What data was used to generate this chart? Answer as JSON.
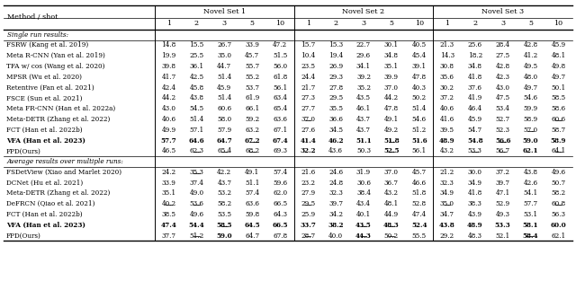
{
  "section1_label": "Single run results:",
  "section2_label": "Average results over multiple runs:",
  "single_run": [
    [
      "FSRW (Kang et al. 2019)",
      "14.8",
      "15.5",
      "26.7",
      "33.9",
      "47.2",
      "15.7",
      "15.3",
      "22.7",
      "30.1",
      "40.5",
      "21.3",
      "25.6",
      "28.4",
      "42.8",
      "45.9"
    ],
    [
      "Meta R-CNN (Yan et al. 2019)",
      "19.9",
      "25.5",
      "35.0",
      "45.7",
      "51.5",
      "10.4",
      "19.4",
      "29.6",
      "34.8",
      "45.4",
      "14.3",
      "18.2",
      "27.5",
      "41.2",
      "48.1"
    ],
    [
      "TFA w/ cos (Wang et al. 2020)",
      "39.8",
      "36.1",
      "44.7",
      "55.7",
      "56.0",
      "23.5",
      "26.9",
      "34.1",
      "35.1",
      "39.1",
      "30.8",
      "34.8",
      "42.8",
      "49.5",
      "49.8"
    ],
    [
      "MPSR (Wu et al. 2020)",
      "41.7",
      "42.5",
      "51.4",
      "55.2",
      "61.8",
      "24.4",
      "29.3",
      "39.2",
      "39.9",
      "47.8",
      "35.6",
      "41.8",
      "42.3",
      "48.0",
      "49.7"
    ],
    [
      "Retentive (Fan et al. 2021)",
      "42.4",
      "45.8",
      "45.9",
      "53.7",
      "56.1",
      "21.7",
      "27.8",
      "35.2",
      "37.0",
      "40.3",
      "30.2",
      "37.6",
      "43.0",
      "49.7",
      "50.1"
    ],
    [
      "FSCE (Sun et al. 2021)",
      "44.2",
      "43.8",
      "51.4",
      "61.9",
      "63.4",
      "27.3",
      "29.5",
      "43.5",
      "44.2",
      "50.2",
      "37.2",
      "41.9",
      "47.5",
      "54.6",
      "58.5"
    ],
    [
      "Meta FR-CNN (Han et al. 2022a)",
      "43.0",
      "54.5",
      "60.6",
      "66.1",
      "65.4",
      "27.7",
      "35.5",
      "46.1",
      "47.8",
      "51.4",
      "40.6",
      "46.4",
      "53.4",
      "59.9",
      "58.6"
    ],
    [
      "Meta-DETR (Zhang et al. 2022)",
      "40.6",
      "51.4",
      "58.0",
      "59.2",
      "63.6",
      "37.0",
      "36.6",
      "43.7",
      "49.1",
      "54.6",
      "41.6",
      "45.9",
      "52.7",
      "58.9",
      "60.6"
    ],
    [
      "FCT (Han et al. 2022b)",
      "49.9",
      "57.1",
      "57.9",
      "63.2",
      "67.1",
      "27.6",
      "34.5",
      "43.7",
      "49.2",
      "51.2",
      "39.5",
      "54.7",
      "52.3",
      "57.0",
      "58.7"
    ],
    [
      "VFA (Han et al. 2023)",
      "57.7",
      "64.6",
      "64.7",
      "67.2",
      "67.4",
      "41.4",
      "46.2",
      "51.1",
      "51.8",
      "51.6",
      "48.9",
      "54.8",
      "56.6",
      "59.0",
      "58.9"
    ],
    [
      "FPD(Ours)",
      "46.5",
      "62.3",
      "65.4",
      "68.2",
      "69.3",
      "32.2",
      "43.6",
      "50.3",
      "52.5",
      "56.1",
      "43.2",
      "53.3",
      "56.7",
      "62.1",
      "64.1"
    ]
  ],
  "multi_run": [
    [
      "FSDetView (Xiao and Marlet 2020)",
      "24.2",
      "35.3",
      "42.2",
      "49.1",
      "57.4",
      "21.6",
      "24.6",
      "31.9",
      "37.0",
      "45.7",
      "21.2",
      "30.0",
      "37.2",
      "43.8",
      "49.6"
    ],
    [
      "DCNet (Hu et al. 2021)",
      "33.9",
      "37.4",
      "43.7",
      "51.1",
      "59.6",
      "23.2",
      "24.8",
      "30.6",
      "36.7",
      "46.6",
      "32.3",
      "34.9",
      "39.7",
      "42.6",
      "50.7"
    ],
    [
      "Meta-DETR (Zhang et al. 2022)",
      "35.1",
      "49.0",
      "53.2",
      "57.4",
      "62.0",
      "27.9",
      "32.3",
      "38.4",
      "43.2",
      "51.8",
      "34.9",
      "41.8",
      "47.1",
      "54.1",
      "58.2"
    ],
    [
      "DeFRCN (Qiao et al. 2021)",
      "40.2",
      "53.6",
      "58.2",
      "63.6",
      "66.5",
      "29.5",
      "39.7",
      "43.4",
      "48.1",
      "52.8",
      "35.0",
      "38.3",
      "52.9",
      "57.7",
      "60.8"
    ],
    [
      "FCT (Han et al. 2022b)",
      "38.5",
      "49.6",
      "53.5",
      "59.8",
      "64.3",
      "25.9",
      "34.2",
      "40.1",
      "44.9",
      "47.4",
      "34.7",
      "43.9",
      "49.3",
      "53.1",
      "56.3"
    ],
    [
      "VFA (Han et al. 2023)",
      "47.4",
      "54.4",
      "58.5",
      "64.5",
      "66.5",
      "33.7",
      "38.2",
      "43.5",
      "48.3",
      "52.4",
      "43.8",
      "48.9",
      "53.3",
      "58.1",
      "60.0"
    ],
    [
      "FPD(Ours)",
      "37.7",
      "51.2",
      "59.0",
      "64.7",
      "67.8",
      "28.7",
      "40.0",
      "44.3",
      "50.2",
      "55.5",
      "29.2",
      "48.3",
      "52.1",
      "58.4",
      "62.1"
    ]
  ],
  "single_bold": {
    "9": [
      0,
      1,
      2,
      3,
      4,
      5,
      6,
      7,
      8,
      9,
      10,
      11,
      12,
      13,
      14,
      15
    ],
    "10": [
      6,
      9,
      14
    ]
  },
  "single_underline": {
    "7": [
      6,
      15
    ],
    "8": [
      14
    ],
    "9": [
      4,
      9,
      13
    ],
    "10": [
      2,
      3,
      4,
      9,
      12,
      13,
      15
    ]
  },
  "multi_bold": {
    "5": [
      0,
      1,
      2,
      3,
      4,
      5,
      6,
      7,
      8,
      9,
      10,
      11,
      12,
      13,
      14,
      15
    ],
    "6": [
      3,
      8,
      14
    ]
  },
  "multi_underline": {
    "0": [
      2
    ],
    "3": [
      1,
      2,
      6,
      11,
      15
    ],
    "5": [
      3,
      8,
      9
    ],
    "6": [
      2,
      6,
      8,
      9,
      14
    ]
  }
}
